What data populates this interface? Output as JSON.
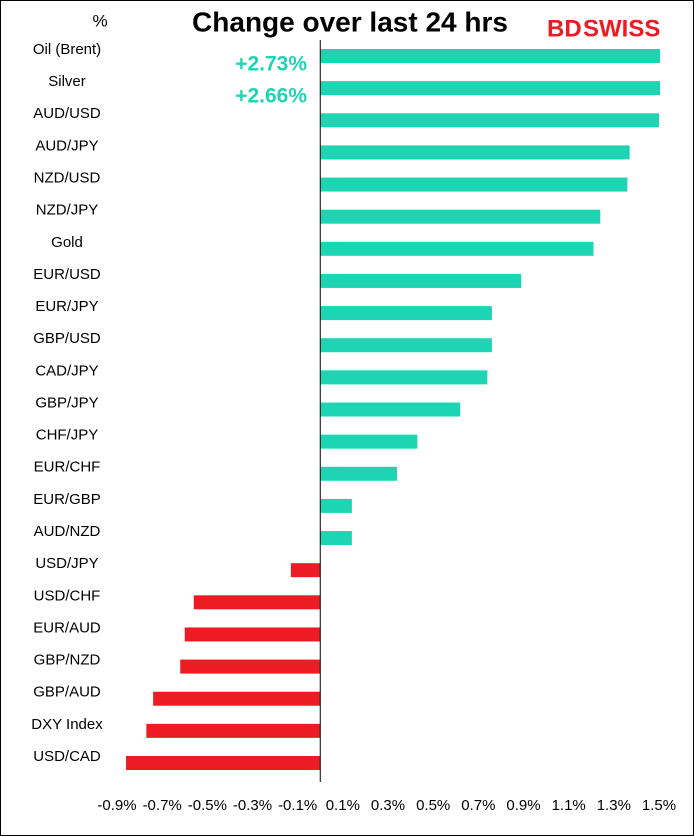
{
  "chart_data": {
    "type": "hbar",
    "title": "Change over last 24 hrs",
    "y_label": "%",
    "brand": [
      "BD",
      "SWISS"
    ],
    "categories": [
      "Oil (Brent)",
      "Silver",
      "AUD/USD",
      "AUD/JPY",
      "NZD/USD",
      "NZD/JPY",
      "Gold",
      "EUR/USD",
      "EUR/JPY",
      "GBP/USD",
      "CAD/JPY",
      "GBP/JPY",
      "CHF/JPY",
      "EUR/CHF",
      "EUR/GBP",
      "AUD/NZD",
      "USD/JPY",
      "USD/CHF",
      "EUR/AUD",
      "GBP/NZD",
      "GBP/AUD",
      "DXY Index",
      "USD/CAD"
    ],
    "values": [
      2.73,
      2.66,
      1.5,
      1.37,
      1.36,
      1.24,
      1.21,
      0.89,
      0.76,
      0.76,
      0.74,
      0.62,
      0.43,
      0.34,
      0.14,
      0.14,
      -0.13,
      -0.56,
      -0.6,
      -0.62,
      -0.74,
      -0.77,
      -0.86
    ],
    "value_labels": [
      "+2.73%",
      "+2.66%",
      null,
      null,
      null,
      null,
      null,
      null,
      null,
      null,
      null,
      null,
      null,
      null,
      null,
      null,
      null,
      null,
      null,
      null,
      null,
      null,
      null
    ],
    "positive_color": "#1ed5b3",
    "negative_color": "#ed1c24",
    "xlim": [
      -0.9,
      1.5
    ],
    "xticks": [
      {
        "value": -0.9,
        "label": "-0.9%"
      },
      {
        "value": -0.7,
        "label": "-0.7%"
      },
      {
        "value": -0.5,
        "label": "-0.5%"
      },
      {
        "value": -0.3,
        "label": "-0.3%"
      },
      {
        "value": -0.1,
        "label": "-0.1%"
      },
      {
        "value": 0.1,
        "label": "0.1%"
      },
      {
        "value": 0.3,
        "label": "0.3%"
      },
      {
        "value": 0.5,
        "label": "0.5%"
      },
      {
        "value": 0.7,
        "label": "0.7%"
      },
      {
        "value": 0.9,
        "label": "0.9%"
      },
      {
        "value": 1.1,
        "label": "1.1%"
      },
      {
        "value": 1.3,
        "label": "1.3%"
      },
      {
        "value": 1.5,
        "label": "1.5%"
      }
    ],
    "grid": false
  }
}
